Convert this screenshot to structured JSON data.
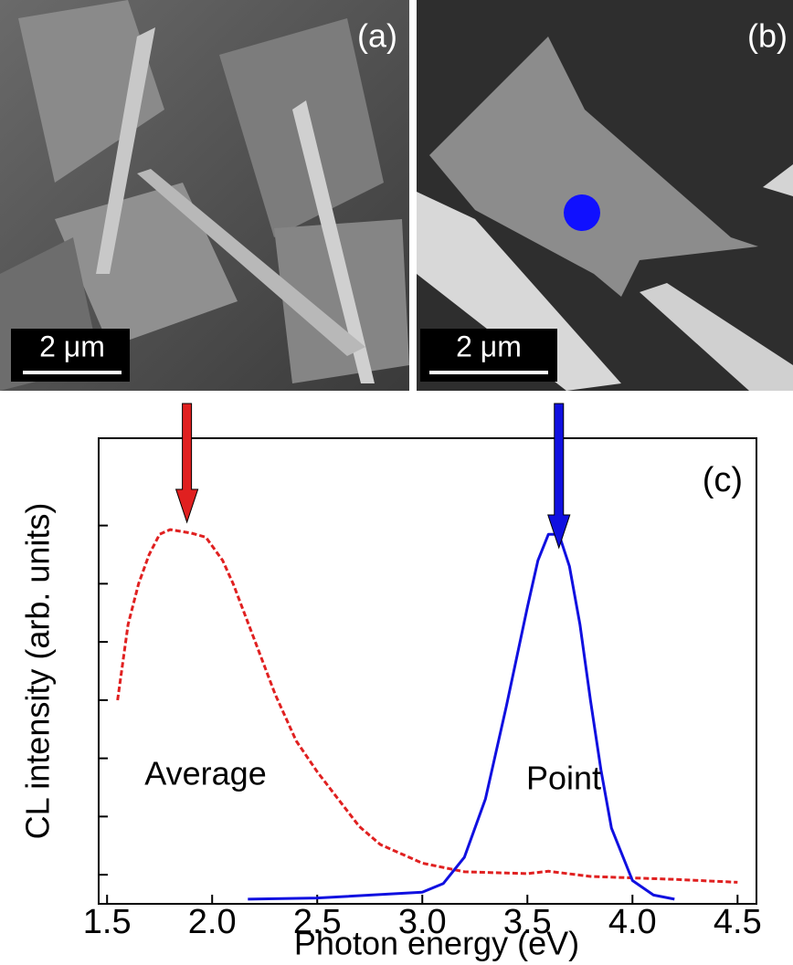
{
  "panels": {
    "a": {
      "label": "(a)",
      "scale": "2 μm"
    },
    "b": {
      "label": "(b)",
      "scale": "2 μm"
    }
  },
  "chart_data": {
    "type": "line",
    "panel_label": "(c)",
    "xlabel": "Photon energy (eV)",
    "ylabel": "CL intensity (arb. units)",
    "xlim": [
      1.46,
      4.59
    ],
    "xticks": [
      {
        "value": 1.5,
        "label": "1.5"
      },
      {
        "value": 2.0,
        "label": "2.0"
      },
      {
        "value": 2.5,
        "label": "2.5"
      },
      {
        "value": 3.0,
        "label": "3.0"
      },
      {
        "value": 3.5,
        "label": "3.5"
      },
      {
        "value": 4.0,
        "label": "4.0"
      },
      {
        "value": 4.5,
        "label": "4.5"
      }
    ],
    "ylim": [
      -0.5,
      7.5
    ],
    "yticks": [
      0,
      1,
      2,
      3,
      4,
      5,
      6
    ],
    "series": [
      {
        "name": "Average",
        "color": "#e02020",
        "dash": true,
        "x": [
          1.55,
          1.6,
          1.65,
          1.7,
          1.75,
          1.8,
          1.9,
          1.97,
          2.05,
          2.1,
          2.2,
          2.3,
          2.4,
          2.5,
          2.6,
          2.7,
          2.8,
          3.0,
          3.2,
          3.5,
          3.6,
          3.8,
          4.2,
          4.5
        ],
        "values": [
          3.0,
          4.3,
          5.0,
          5.5,
          5.85,
          5.93,
          5.87,
          5.8,
          5.4,
          5.0,
          4.05,
          3.1,
          2.3,
          1.77,
          1.3,
          0.83,
          0.52,
          0.2,
          0.05,
          0.02,
          0.06,
          -0.03,
          -0.08,
          -0.13
        ]
      },
      {
        "name": "Point",
        "color": "#1010e0",
        "dash": false,
        "x": [
          2.17,
          2.5,
          3.0,
          3.1,
          3.2,
          3.3,
          3.4,
          3.5,
          3.55,
          3.6,
          3.65,
          3.7,
          3.75,
          3.8,
          3.85,
          3.9,
          4.0,
          4.1,
          4.2
        ],
        "values": [
          -0.42,
          -0.4,
          -0.3,
          -0.15,
          0.3,
          1.3,
          2.9,
          4.6,
          5.4,
          5.85,
          5.85,
          5.3,
          4.3,
          3.0,
          1.8,
          0.8,
          -0.1,
          -0.35,
          -0.42
        ]
      }
    ],
    "arrows": [
      {
        "x": 1.88,
        "color": "#e02020"
      },
      {
        "x": 3.65,
        "color": "#1010e0"
      }
    ]
  }
}
